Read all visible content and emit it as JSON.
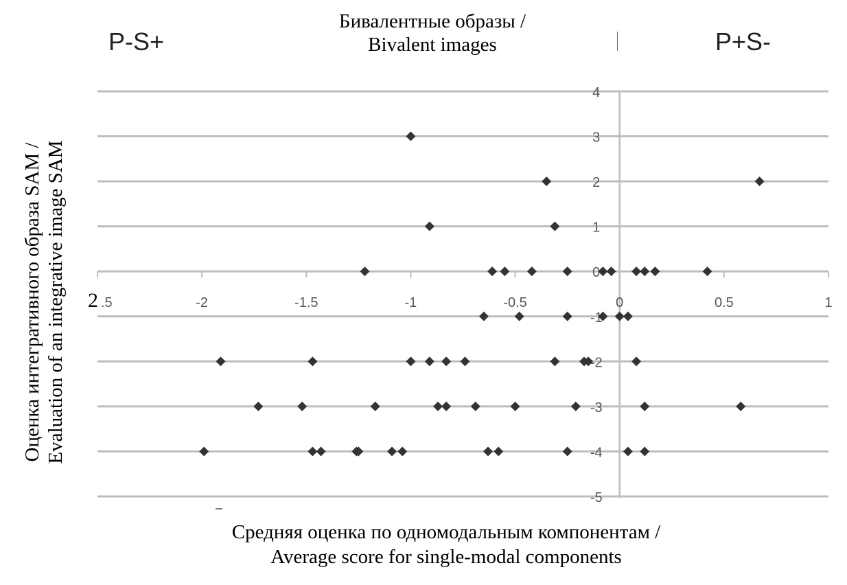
{
  "labels": {
    "top_left_quadrant": "P-S+",
    "top_right_quadrant": "P+S-",
    "title_line1": "Бивалентные образы /",
    "title_line2": "Bivalent images",
    "ylabel_line1": "Оценка интегративного образа SAM /",
    "ylabel_line2": "Evaluation of an integrative image SAM",
    "xlabel_line1": "Средняя оценка по одномодальным компонентам /",
    "xlabel_line2": "Average score for single-modal components",
    "x_leftmost_tick_prefix": "2"
  },
  "chart_data": {
    "type": "scatter",
    "title": "Бивалентные образы / Bivalent images",
    "xlabel": "Средняя оценка по одномодальным компонентам / Average score for single-modal components",
    "ylabel": "Оценка интегративного образа SAM / Evaluation of an integrative image SAM",
    "xlim": [
      -2.5,
      1
    ],
    "ylim": [
      -5,
      4
    ],
    "x_ticks": [
      "-2.5",
      "-2",
      "-1.5",
      "-1",
      "-0.5",
      "0",
      "0.5",
      "1"
    ],
    "y_ticks": [
      "4",
      "3",
      "2",
      "1",
      "0",
      "-1",
      "-2",
      "-3",
      "-4",
      "-5"
    ],
    "grid": "horizontal",
    "legend": null,
    "annotations": [
      "P-S+ (top-left)",
      "P+S- (top-right)"
    ],
    "marker": "diamond",
    "points": [
      {
        "x": -1.0,
        "y": 3
      },
      {
        "x": -0.35,
        "y": 2
      },
      {
        "x": 0.67,
        "y": 2
      },
      {
        "x": -0.91,
        "y": 1
      },
      {
        "x": -0.31,
        "y": 1
      },
      {
        "x": -1.22,
        "y": 0
      },
      {
        "x": -0.61,
        "y": 0
      },
      {
        "x": -0.55,
        "y": 0
      },
      {
        "x": -0.42,
        "y": 0
      },
      {
        "x": -0.25,
        "y": 0
      },
      {
        "x": -0.08,
        "y": 0
      },
      {
        "x": -0.04,
        "y": 0
      },
      {
        "x": 0.08,
        "y": 0
      },
      {
        "x": 0.12,
        "y": 0
      },
      {
        "x": 0.17,
        "y": 0
      },
      {
        "x": 0.42,
        "y": 0
      },
      {
        "x": -0.65,
        "y": -1
      },
      {
        "x": -0.48,
        "y": -1
      },
      {
        "x": -0.25,
        "y": -1
      },
      {
        "x": -0.08,
        "y": -1
      },
      {
        "x": 0.0,
        "y": -1
      },
      {
        "x": 0.04,
        "y": -1
      },
      {
        "x": -1.91,
        "y": -2
      },
      {
        "x": -1.47,
        "y": -2
      },
      {
        "x": -1.0,
        "y": -2
      },
      {
        "x": -0.91,
        "y": -2
      },
      {
        "x": -0.83,
        "y": -2
      },
      {
        "x": -0.74,
        "y": -2
      },
      {
        "x": -0.31,
        "y": -2
      },
      {
        "x": -0.17,
        "y": -2
      },
      {
        "x": -0.15,
        "y": -2
      },
      {
        "x": 0.08,
        "y": -2
      },
      {
        "x": -1.73,
        "y": -3
      },
      {
        "x": -1.52,
        "y": -3
      },
      {
        "x": -1.17,
        "y": -3
      },
      {
        "x": -0.87,
        "y": -3
      },
      {
        "x": -0.83,
        "y": -3
      },
      {
        "x": -0.69,
        "y": -3
      },
      {
        "x": -0.5,
        "y": -3
      },
      {
        "x": -0.21,
        "y": -3
      },
      {
        "x": 0.12,
        "y": -3
      },
      {
        "x": 0.58,
        "y": -3
      },
      {
        "x": -1.99,
        "y": -4
      },
      {
        "x": -1.47,
        "y": -4
      },
      {
        "x": -1.43,
        "y": -4
      },
      {
        "x": -1.26,
        "y": -4
      },
      {
        "x": -1.25,
        "y": -4
      },
      {
        "x": -1.09,
        "y": -4
      },
      {
        "x": -1.04,
        "y": -4
      },
      {
        "x": -0.63,
        "y": -4
      },
      {
        "x": -0.58,
        "y": -4
      },
      {
        "x": -0.25,
        "y": -4
      },
      {
        "x": 0.04,
        "y": -4
      },
      {
        "x": 0.12,
        "y": -4
      }
    ]
  },
  "colors": {
    "grid": "#bdbdbd",
    "marker": "#333333",
    "tick_text": "#555555"
  }
}
